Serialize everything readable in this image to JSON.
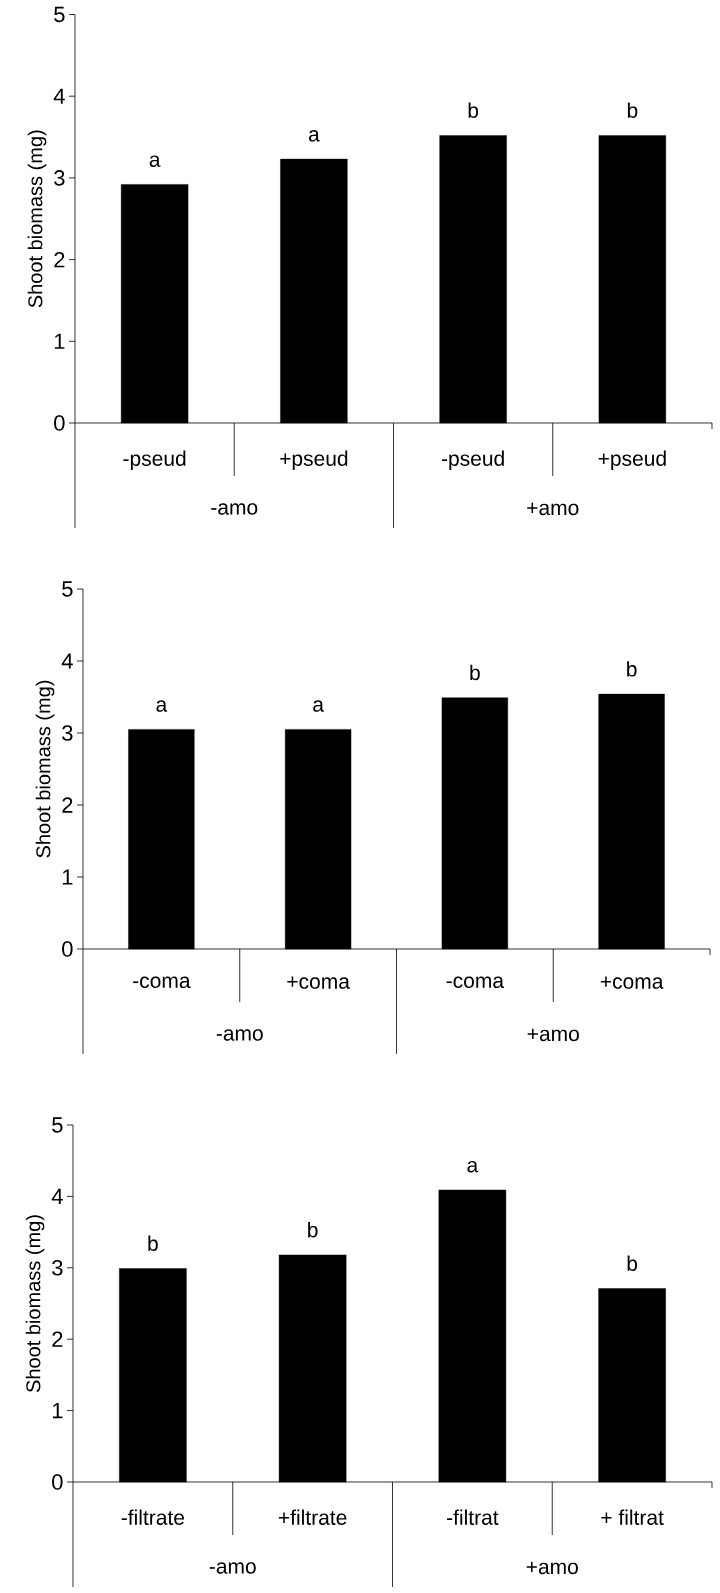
{
  "chart_data": [
    {
      "type": "bar",
      "categories": [
        "-pseud",
        "+pseud",
        "-pseud",
        "+pseud"
      ],
      "values": [
        2.92,
        3.23,
        3.52,
        3.52
      ],
      "value_labels": [
        "a",
        "a",
        "b",
        "b"
      ],
      "color": "#000000",
      "ylabel": "Shoot biomass (mg)",
      "ylim": [
        0,
        5
      ],
      "yticks": [
        0,
        1,
        2,
        3,
        4,
        5
      ],
      "annotations": [
        "-amo",
        "+amo"
      ]
    },
    {
      "type": "bar",
      "categories": [
        "-coma",
        "+coma",
        "-coma",
        "+coma"
      ],
      "values": [
        3.05,
        3.05,
        3.49,
        3.54
      ],
      "value_labels": [
        "a",
        "a",
        "b",
        "b"
      ],
      "color": "#000000",
      "ylabel": "Shoot biomass (mg)",
      "ylim": [
        0,
        5
      ],
      "yticks": [
        0,
        1,
        2,
        3,
        4,
        5
      ],
      "annotations": [
        "-amo",
        "+amo"
      ]
    },
    {
      "type": "bar",
      "categories": [
        "-filtrate",
        "+filtrate",
        "-filtrat",
        "+ filtrat"
      ],
      "values": [
        2.99,
        3.18,
        4.09,
        2.71
      ],
      "value_labels": [
        "b",
        "b",
        "a",
        "b"
      ],
      "color": "#000000",
      "ylabel": "Shoot biomass (mg)",
      "ylim": [
        0,
        5
      ],
      "yticks": [
        0,
        1,
        2,
        3,
        4,
        5
      ],
      "annotations": [
        "-amo",
        "+amo"
      ]
    }
  ]
}
